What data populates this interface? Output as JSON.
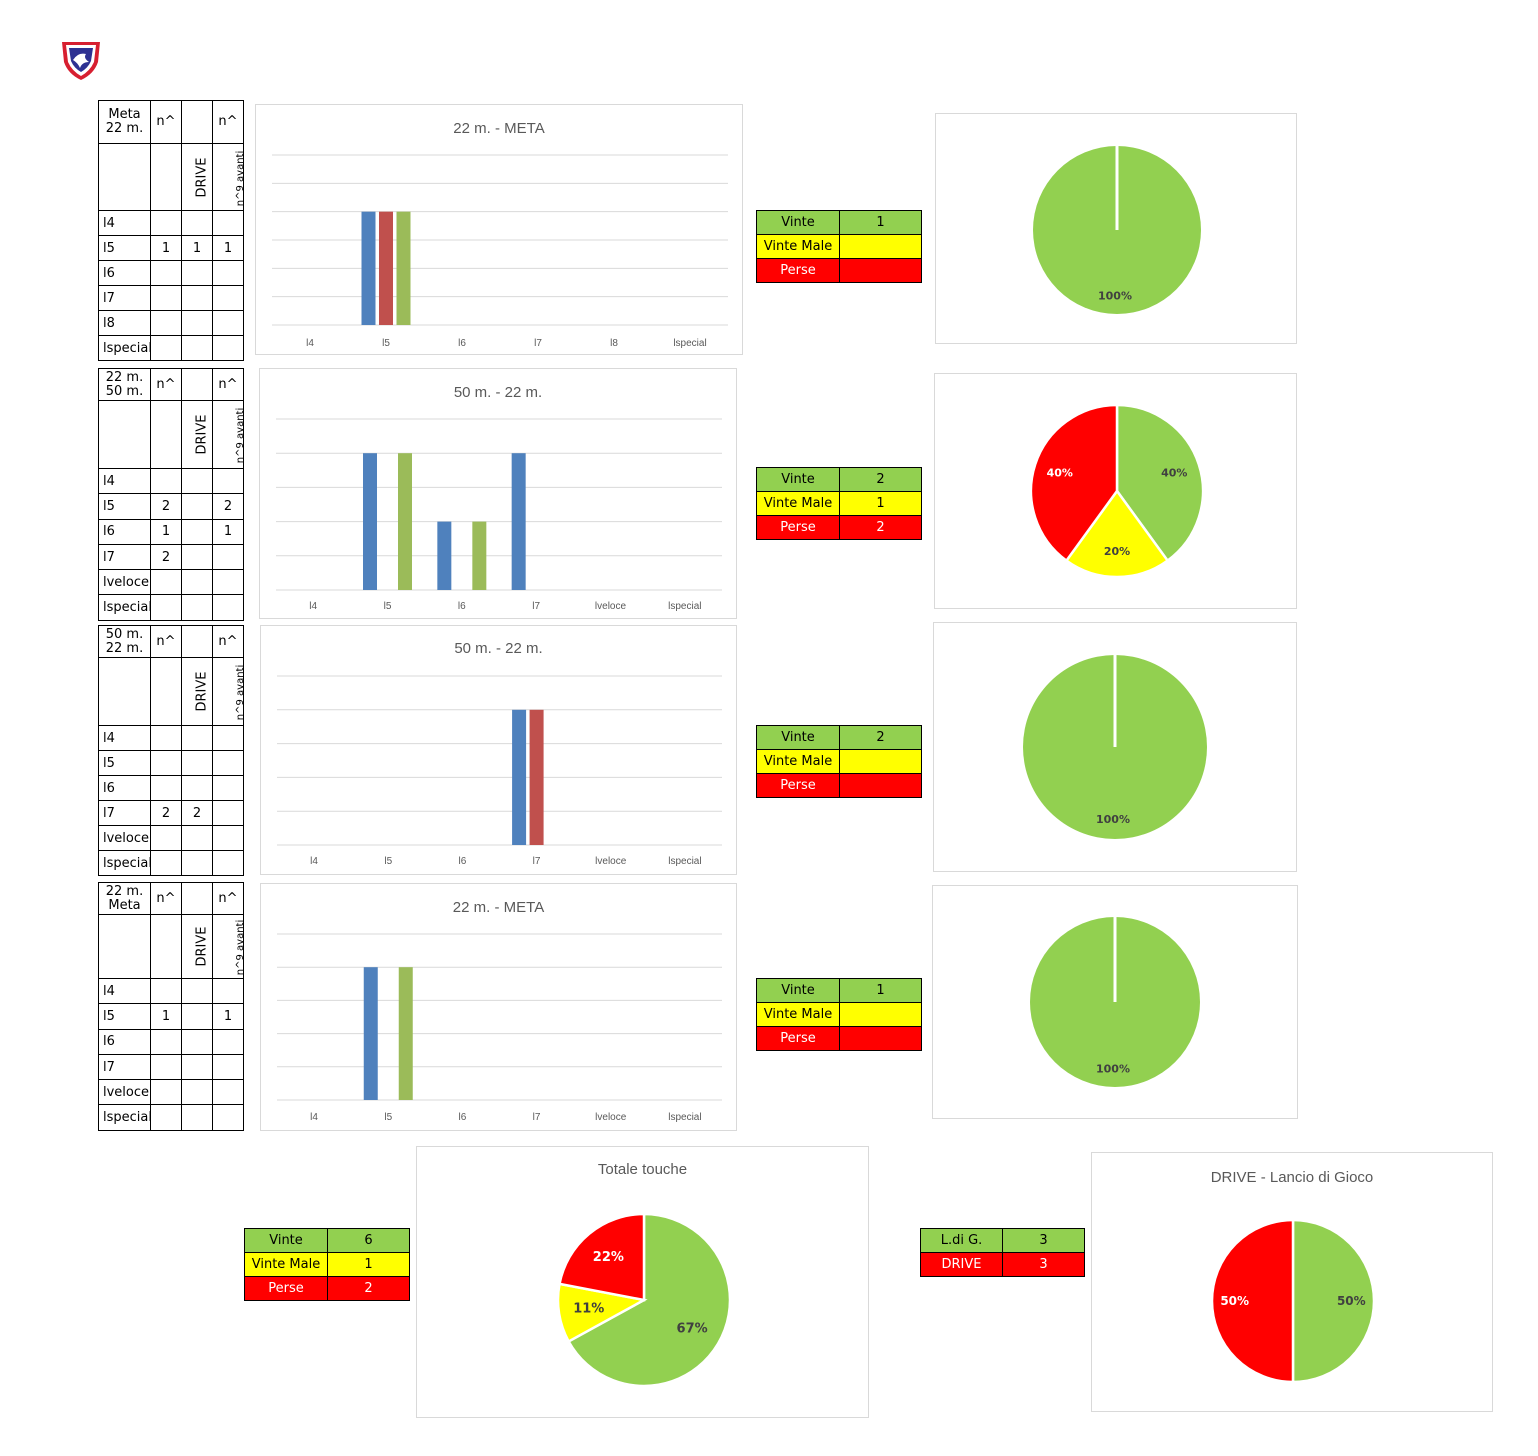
{
  "colors": {
    "green": "#92d050",
    "yellow": "#ffff00",
    "red": "#ff0000",
    "blue": "#4f81bd",
    "bar_red": "#c0504d",
    "bar_green": "#9bbb59"
  },
  "logo": {
    "icon": "club-shield-logo"
  },
  "sections": [
    {
      "table": {
        "head": [
          "Meta\n22 m.",
          "n^",
          "",
          "n^"
        ],
        "sub": [
          "",
          "",
          "DRIVE",
          "n^9 avanti"
        ],
        "rows": [
          [
            "l4",
            "",
            "",
            ""
          ],
          [
            "l5",
            "1",
            "1",
            "1"
          ],
          [
            "l6",
            "",
            "",
            ""
          ],
          [
            "l7",
            "",
            "",
            ""
          ],
          [
            "l8",
            "",
            "",
            ""
          ],
          [
            "lspecial",
            "",
            "",
            ""
          ]
        ]
      },
      "results": {
        "vinte_label": "Vinte",
        "vinte": "1",
        "male_label": "Vinte Male",
        "male": "",
        "perse_label": "Perse",
        "perse": ""
      },
      "pie": {
        "slices": [
          {
            "label": "100%",
            "value": 100,
            "color": "green"
          }
        ]
      }
    },
    {
      "table": {
        "head": [
          "22 m.\n50 m.",
          "n^",
          "",
          "n^"
        ],
        "sub": [
          "",
          "",
          "DRIVE",
          "n^9 avanti"
        ],
        "rows": [
          [
            "l4",
            "",
            "",
            ""
          ],
          [
            "l5",
            "2",
            "",
            "2"
          ],
          [
            "l6",
            "1",
            "",
            "1"
          ],
          [
            "l7",
            "2",
            "",
            ""
          ],
          [
            "lveloce",
            "",
            "",
            ""
          ],
          [
            "lspecial",
            "",
            "",
            ""
          ]
        ]
      },
      "results": {
        "vinte_label": "Vinte",
        "vinte": "2",
        "male_label": "Vinte Male",
        "male": "1",
        "perse_label": "Perse",
        "perse": "2"
      },
      "pie": {
        "slices": [
          {
            "label": "40%",
            "value": 40,
            "color": "green"
          },
          {
            "label": "20%",
            "value": 20,
            "color": "yellow"
          },
          {
            "label": "40%",
            "value": 40,
            "color": "red"
          }
        ]
      }
    },
    {
      "table": {
        "head": [
          "50 m.\n22 m.",
          "n^",
          "",
          "n^"
        ],
        "sub": [
          "",
          "",
          "DRIVE",
          "n^9 avanti"
        ],
        "rows": [
          [
            "l4",
            "",
            "",
            ""
          ],
          [
            "l5",
            "",
            "",
            ""
          ],
          [
            "l6",
            "",
            "",
            ""
          ],
          [
            "l7",
            "2",
            "2",
            ""
          ],
          [
            "lveloce",
            "",
            "",
            ""
          ],
          [
            "lspecial",
            "",
            "",
            ""
          ]
        ]
      },
      "results": {
        "vinte_label": "Vinte",
        "vinte": "2",
        "male_label": "Vinte Male",
        "male": "",
        "perse_label": "Perse",
        "perse": ""
      },
      "pie": {
        "slices": [
          {
            "label": "100%",
            "value": 100,
            "color": "green"
          }
        ]
      }
    },
    {
      "table": {
        "head": [
          "22 m.\nMeta",
          "n^",
          "",
          "n^"
        ],
        "sub": [
          "",
          "",
          "DRIVE",
          "n^9 avanti"
        ],
        "rows": [
          [
            "l4",
            "",
            "",
            ""
          ],
          [
            "l5",
            "1",
            "",
            "1"
          ],
          [
            "l6",
            "",
            "",
            ""
          ],
          [
            "l7",
            "",
            "",
            ""
          ],
          [
            "lveloce",
            "",
            "",
            ""
          ],
          [
            "lspecial",
            "",
            "",
            ""
          ]
        ]
      },
      "results": {
        "vinte_label": "Vinte",
        "vinte": "1",
        "male_label": "Vinte Male",
        "male": "",
        "perse_label": "Perse",
        "perse": ""
      },
      "pie": {
        "slices": [
          {
            "label": "100%",
            "value": 100,
            "color": "green"
          }
        ]
      }
    }
  ],
  "totals": {
    "results": {
      "vinte_label": "Vinte",
      "vinte": "6",
      "male_label": "Vinte Male",
      "male": "1",
      "perse_label": "Perse",
      "perse": "2"
    },
    "drive_table": {
      "ldg_label": "L.di G.",
      "ldg": "3",
      "drive_label": "DRIVE",
      "drive": "3"
    }
  },
  "chart_data": [
    {
      "type": "bar",
      "title": "22 m. - META",
      "categories": [
        "l4",
        "l5",
        "l6",
        "l7",
        "l8",
        "lspecial"
      ],
      "ylim": [
        0,
        1.5
      ],
      "grid": true,
      "series": [
        {
          "values": [
            0,
            1,
            0,
            0,
            0,
            0
          ],
          "color": "#4f81bd"
        },
        {
          "values": [
            0,
            1,
            0,
            0,
            0,
            0
          ],
          "color": "#c0504d"
        },
        {
          "values": [
            0,
            1,
            0,
            0,
            0,
            0
          ],
          "color": "#9bbb59"
        }
      ]
    },
    {
      "type": "bar",
      "title": "50 m. - 22 m.",
      "categories": [
        "l4",
        "l5",
        "l6",
        "l7",
        "lveloce",
        "lspecial"
      ],
      "ylim": [
        0,
        2.5
      ],
      "grid": true,
      "series": [
        {
          "values": [
            0,
            2,
            1,
            2,
            0,
            0
          ],
          "color": "#4f81bd"
        },
        {
          "values": [
            0,
            0,
            0,
            0,
            0,
            0
          ],
          "color": "#c0504d"
        },
        {
          "values": [
            0,
            2,
            1,
            0,
            0,
            0
          ],
          "color": "#9bbb59"
        }
      ]
    },
    {
      "type": "bar",
      "title": "50 m. - 22 m.",
      "categories": [
        "l4",
        "l5",
        "l6",
        "l7",
        "lveloce",
        "lspecial"
      ],
      "ylim": [
        0,
        2.5
      ],
      "grid": true,
      "series": [
        {
          "values": [
            0,
            0,
            0,
            2,
            0,
            0
          ],
          "color": "#4f81bd"
        },
        {
          "values": [
            0,
            0,
            0,
            2,
            0,
            0
          ],
          "color": "#c0504d"
        },
        {
          "values": [
            0,
            0,
            0,
            0,
            0,
            0
          ],
          "color": "#9bbb59"
        }
      ]
    },
    {
      "type": "bar",
      "title": "22 m. - META",
      "categories": [
        "l4",
        "l5",
        "l6",
        "l7",
        "lveloce",
        "lspecial"
      ],
      "ylim": [
        0,
        1.25
      ],
      "grid": true,
      "series": [
        {
          "values": [
            0,
            1,
            0,
            0,
            0,
            0
          ],
          "color": "#4f81bd"
        },
        {
          "values": [
            0,
            0,
            0,
            0,
            0,
            0
          ],
          "color": "#c0504d"
        },
        {
          "values": [
            0,
            1,
            0,
            0,
            0,
            0
          ],
          "color": "#9bbb59"
        }
      ]
    },
    {
      "type": "pie",
      "title": "Totale touche",
      "slices": [
        {
          "label": "67%",
          "value": 67,
          "color": "#92d050"
        },
        {
          "label": "11%",
          "value": 11,
          "color": "#ffff00"
        },
        {
          "label": "22%",
          "value": 22,
          "color": "#ff0000"
        }
      ]
    },
    {
      "type": "pie",
      "title": "DRIVE - Lancio di Gioco",
      "slices": [
        {
          "label": "50%",
          "value": 50,
          "color": "#92d050"
        },
        {
          "label": "50%",
          "value": 50,
          "color": "#ff0000"
        }
      ]
    }
  ]
}
